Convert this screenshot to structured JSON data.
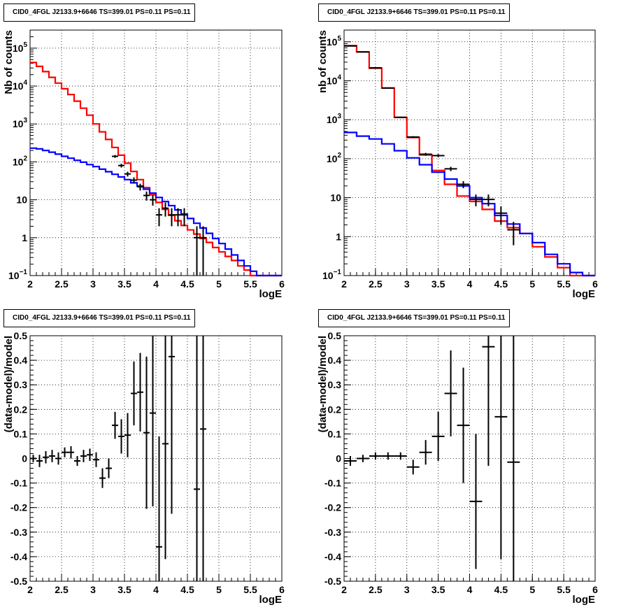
{
  "chart_data": [
    {
      "type": "line",
      "title": "CID0_4FGL J2133.9+6646 TS=399.01 PS=0.11 PS=0.11",
      "xlabel": "logE",
      "ylabel": "Nb of counts",
      "xlim": [
        2,
        6
      ],
      "ylim": [
        0.1,
        300000
      ],
      "yscale": "log",
      "grid": true,
      "x_ticks": [
        "2",
        "2.5",
        "3",
        "3.5",
        "4",
        "4.5",
        "5",
        "5.5",
        "6"
      ],
      "y_ticks": [
        "10⁻¹",
        "1",
        "10",
        "10²",
        "10³",
        "10⁴",
        "10⁵"
      ],
      "bin_width": 0.1,
      "series": [
        {
          "color": "#ff0000",
          "style": "step",
          "x": [
            2.05,
            2.15,
            2.25,
            2.35,
            2.45,
            2.55,
            2.65,
            2.75,
            2.85,
            2.95,
            3.05,
            3.15,
            3.25,
            3.35,
            3.45,
            3.55,
            3.65,
            3.75,
            3.85,
            3.95,
            4.05,
            4.15,
            4.25,
            4.35,
            4.45,
            4.55,
            4.65,
            4.75,
            4.85,
            4.95,
            5.05,
            5.15,
            5.25,
            5.35,
            5.45,
            5.55,
            5.65,
            5.75,
            5.85,
            5.95
          ],
          "values": [
            42000,
            33000,
            24000,
            17000,
            12000,
            8500,
            6000,
            4000,
            2600,
            1700,
            1000,
            620,
            390,
            240,
            150,
            92,
            56,
            34,
            21,
            13.5,
            8.5,
            5.6,
            3.9,
            2.8,
            2.1,
            1.6,
            1.25,
            0.95,
            0.75,
            0.55,
            0.42,
            0.32,
            0.25,
            0.18,
            0.14,
            0.1,
            0.1,
            0.1,
            0.1,
            0.1
          ]
        },
        {
          "color": "#0000ff",
          "style": "step",
          "x": [
            2.05,
            2.15,
            2.25,
            2.35,
            2.45,
            2.55,
            2.65,
            2.75,
            2.85,
            2.95,
            3.05,
            3.15,
            3.25,
            3.35,
            3.45,
            3.55,
            3.65,
            3.75,
            3.85,
            3.95,
            4.05,
            4.15,
            4.25,
            4.35,
            4.45,
            4.55,
            4.65,
            4.75,
            4.85,
            4.95,
            5.05,
            5.15,
            5.25,
            5.35,
            5.45,
            5.55,
            5.65,
            5.75,
            5.85,
            5.95
          ],
          "values": [
            230,
            220,
            200,
            180,
            160,
            140,
            125,
            110,
            98,
            85,
            75,
            64,
            55,
            47,
            40,
            34,
            28,
            23,
            19,
            15,
            11.5,
            9,
            7,
            5.4,
            4.2,
            3.2,
            2.4,
            1.8,
            1.3,
            0.95,
            0.7,
            0.5,
            0.35,
            0.25,
            0.18,
            0.13,
            0.1,
            0.1,
            0.1,
            0.1
          ]
        }
      ],
      "points": {
        "x": [
          3.35,
          3.45,
          3.55,
          3.65,
          3.75,
          3.85,
          3.95,
          4.05,
          4.15,
          4.25,
          4.35,
          4.45,
          4.65,
          4.75
        ],
        "y": [
          140,
          80,
          48,
          33,
          22,
          13,
          10,
          4,
          6,
          4,
          4,
          4,
          1,
          1
        ],
        "ylo": [
          128,
          71,
          41,
          27,
          17.5,
          9.5,
          7,
          2,
          3.6,
          2,
          2,
          2,
          0.05,
          0.05
        ],
        "yhi": [
          152,
          89,
          55,
          39,
          26.5,
          16.5,
          13,
          6,
          8.4,
          6,
          6,
          6,
          2,
          2
        ]
      }
    },
    {
      "type": "line",
      "title": "CID0_4FGL J2133.9+6646 TS=399.01 PS=0.11 PS=0.11",
      "xlabel": "logE",
      "ylabel": "nb of counts",
      "xlim": [
        2,
        6
      ],
      "ylim": [
        0.1,
        200000
      ],
      "yscale": "log",
      "grid": true,
      "x_ticks": [
        "2",
        "2.5",
        "3",
        "3.5",
        "4",
        "4.5",
        "5",
        "5.5",
        "6"
      ],
      "y_ticks": [
        "10⁻¹",
        "1",
        "10",
        "10²",
        "10³",
        "10⁴",
        "10⁵"
      ],
      "bin_width": 0.2,
      "series": [
        {
          "color": "#ff0000",
          "style": "step",
          "x": [
            2.1,
            2.3,
            2.5,
            2.7,
            2.9,
            3.1,
            3.3,
            3.5,
            3.7,
            3.9,
            4.1,
            4.3,
            4.5,
            4.7,
            4.9,
            5.1,
            5.3,
            5.5,
            5.7,
            5.9
          ],
          "values": [
            80000,
            55000,
            21000,
            6500,
            1150,
            350,
            125,
            50,
            22,
            11,
            8,
            5,
            2.5,
            1.7,
            1.2,
            0.55,
            0.3,
            0.16,
            0.1,
            0.1
          ]
        },
        {
          "color": "#0000ff",
          "style": "step",
          "x": [
            2.1,
            2.3,
            2.5,
            2.7,
            2.9,
            3.1,
            3.3,
            3.5,
            3.7,
            3.9,
            4.1,
            4.3,
            4.5,
            4.7,
            4.9,
            5.1,
            5.3,
            5.5,
            5.7,
            5.9
          ],
          "values": [
            470,
            380,
            320,
            240,
            160,
            105,
            70,
            45,
            30,
            20,
            10,
            7,
            3.5,
            2.1,
            1.2,
            0.7,
            0.35,
            0.2,
            0.12,
            0.1
          ]
        }
      ],
      "points": {
        "x": [
          2.1,
          2.3,
          2.5,
          2.7,
          2.9,
          3.1,
          3.3,
          3.5,
          3.7,
          3.9,
          4.1,
          4.3,
          4.5,
          4.7
        ],
        "y": [
          78000,
          55000,
          21500,
          6500,
          1150,
          360,
          130,
          120,
          55,
          22,
          9,
          9,
          4,
          1.5
        ],
        "ylo": [
          77000,
          54000,
          21000,
          6400,
          1120,
          341,
          119,
          109,
          48,
          17.5,
          6,
          6,
          2,
          0.6
        ],
        "yhi": [
          79000,
          56000,
          22000,
          6600,
          1180,
          379,
          141,
          131,
          62,
          26.5,
          12,
          12,
          6,
          2.4
        ]
      }
    },
    {
      "type": "scatter",
      "title": "CID0_4FGL J2133.9+6646 TS=399.01 PS=0.11 PS=0.11",
      "xlabel": "logE",
      "ylabel": "(data-model)/model",
      "xlim": [
        2,
        6
      ],
      "ylim": [
        -0.5,
        0.5
      ],
      "grid": true,
      "x_ticks": [
        "2",
        "2.5",
        "3",
        "3.5",
        "4",
        "4.5",
        "5",
        "5.5",
        "6"
      ],
      "y_ticks": [
        "-0.5",
        "-0.4",
        "-0.3",
        "-0.2",
        "-0.1",
        "0",
        "0.1",
        "0.2",
        "0.3",
        "0.4",
        "0.5"
      ],
      "bin_width": 0.1,
      "points": {
        "x": [
          2.05,
          2.15,
          2.25,
          2.35,
          2.45,
          2.55,
          2.65,
          2.75,
          2.85,
          2.95,
          3.05,
          3.15,
          3.25,
          3.35,
          3.45,
          3.55,
          3.65,
          3.75,
          3.85,
          3.95,
          4.05,
          4.15,
          4.25,
          4.65,
          4.75
        ],
        "y": [
          0.0,
          -0.01,
          0.005,
          0.01,
          0.0,
          0.025,
          0.025,
          -0.01,
          0.01,
          0.015,
          -0.005,
          -0.08,
          -0.04,
          0.135,
          0.09,
          0.095,
          0.265,
          0.27,
          0.105,
          0.185,
          -0.36,
          0.06,
          0.415,
          -0.125,
          0.12
        ],
        "err": [
          0.015,
          0.025,
          0.025,
          0.025,
          0.025,
          0.02,
          0.025,
          0.02,
          0.025,
          0.025,
          0.03,
          0.04,
          0.04,
          0.055,
          0.07,
          0.09,
          0.13,
          0.16,
          0.31,
          0.38,
          0.45,
          0.47,
          0.64,
          0.9,
          0.9
        ]
      }
    },
    {
      "type": "scatter",
      "title": "CID0_4FGL J2133.9+6646 TS=399.01 PS=0.11 PS=0.11",
      "xlabel": "logE",
      "ylabel": "(data-model)/model",
      "xlim": [
        2,
        6
      ],
      "ylim": [
        -0.5,
        0.5
      ],
      "grid": true,
      "x_ticks": [
        "2",
        "2.5",
        "3",
        "3.5",
        "4",
        "4.5",
        "5",
        "5.5",
        "6"
      ],
      "y_ticks": [
        "-0.5",
        "-0.4",
        "-0.3",
        "-0.2",
        "-0.1",
        "0",
        "0.1",
        "0.2",
        "0.3",
        "0.4",
        "0.5"
      ],
      "bin_width": 0.2,
      "points": {
        "x": [
          2.1,
          2.3,
          2.5,
          2.7,
          2.9,
          3.1,
          3.3,
          3.5,
          3.7,
          3.9,
          4.1,
          4.3,
          4.5,
          4.7
        ],
        "y": [
          -0.01,
          0.0,
          0.01,
          0.01,
          0.01,
          -0.035,
          0.025,
          0.09,
          0.265,
          0.135,
          -0.175,
          0.455,
          0.17,
          -0.015
        ],
        "err": [
          0.02,
          0.015,
          0.015,
          0.015,
          0.015,
          0.03,
          0.05,
          0.1,
          0.175,
          0.235,
          0.275,
          0.485,
          0.58,
          0.7
        ]
      }
    }
  ]
}
